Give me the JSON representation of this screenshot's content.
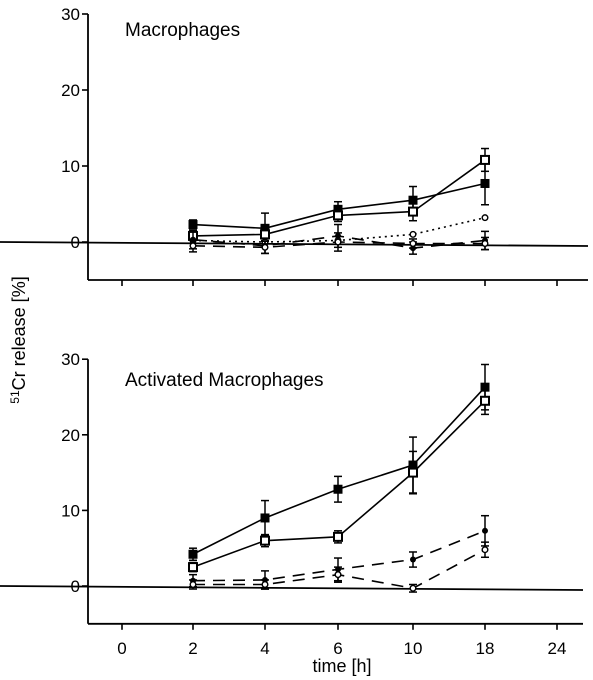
{
  "figure": {
    "ylabel_sup": "51",
    "ylabel_main": "Cr release [%]",
    "xlabel": "time [h]"
  },
  "chart_data": [
    {
      "type": "line",
      "title": "Macrophages",
      "xlabel": "time [h]",
      "ylabel": "51Cr release [%]",
      "x_ticks": [
        "0",
        "2",
        "4",
        "6",
        "10",
        "18",
        "24"
      ],
      "y_ticks": [
        "0",
        "10",
        "20",
        "30"
      ],
      "ylim": [
        -5,
        30
      ],
      "grid": false,
      "x": [
        "2",
        "4",
        "6",
        "10",
        "18"
      ],
      "series": [
        {
          "marker": "filled-square",
          "line": "solid",
          "values": [
            2.3,
            1.8,
            4.3,
            5.5,
            7.7
          ],
          "errors": [
            0.6,
            2.0,
            1.0,
            1.8,
            2.8
          ]
        },
        {
          "marker": "open-square",
          "line": "solid",
          "values": [
            0.8,
            1.0,
            3.5,
            4.0,
            10.8
          ],
          "errors": [
            0.5,
            0.8,
            0.8,
            1.2,
            1.5
          ]
        },
        {
          "marker": "open-circle",
          "line": "dotted",
          "values": [
            0.2,
            0.0,
            0.2,
            1.0,
            3.2
          ],
          "errors": [
            0,
            0,
            0,
            0,
            0
          ]
        },
        {
          "marker": "filled-circle",
          "line": "dashed",
          "values": [
            0.3,
            -0.5,
            0.8,
            -0.8,
            0.2
          ],
          "errors": [
            1.2,
            1.0,
            1.5,
            0.8,
            1.2
          ]
        },
        {
          "marker": "open-circle",
          "line": "dashed",
          "values": [
            -0.5,
            -0.7,
            0.0,
            -0.2,
            -0.2
          ],
          "errors": [
            0.8,
            0.8,
            1.2,
            0.6,
            0.8
          ]
        }
      ]
    },
    {
      "type": "line",
      "title": "Activated Macrophages",
      "xlabel": "time [h]",
      "ylabel": "51Cr release [%]",
      "x_ticks": [
        "0",
        "2",
        "4",
        "6",
        "10",
        "18",
        "24"
      ],
      "y_ticks": [
        "0",
        "10",
        "20",
        "30"
      ],
      "ylim": [
        -5,
        30
      ],
      "grid": false,
      "x": [
        "2",
        "4",
        "6",
        "10",
        "18"
      ],
      "series": [
        {
          "marker": "filled-square",
          "line": "solid",
          "values": [
            4.2,
            9.0,
            12.8,
            16.0,
            26.3
          ],
          "errors": [
            0.8,
            2.3,
            1.7,
            3.7,
            3.0
          ]
        },
        {
          "marker": "open-square",
          "line": "solid",
          "values": [
            2.5,
            6.0,
            6.5,
            15.0,
            24.5
          ],
          "errors": [
            0.6,
            0.8,
            0.8,
            2.8,
            1.8
          ]
        },
        {
          "marker": "filled-circle",
          "line": "dashed",
          "values": [
            0.7,
            0.8,
            2.2,
            3.5,
            7.3
          ],
          "errors": [
            0.8,
            1.2,
            1.5,
            1.0,
            2.0
          ]
        },
        {
          "marker": "open-circle",
          "line": "dashed",
          "values": [
            0.2,
            0.2,
            1.5,
            -0.3,
            4.8
          ],
          "errors": [
            0.6,
            0.6,
            1.0,
            0.5,
            1.0
          ]
        }
      ]
    }
  ]
}
